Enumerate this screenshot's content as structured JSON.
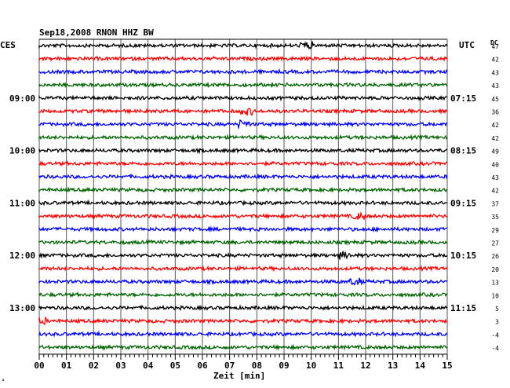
{
  "header": {
    "title": "Sep18,2008   RNON HHZ BW"
  },
  "left_label": "CES",
  "right_label": "UTC",
  "dc_label": "DC",
  "footer_mark": "°",
  "chart_data": {
    "type": "line",
    "title": "Sep18,2008   RNON HHZ BW",
    "xlabel": "Zeit [min]",
    "x_ticks": [
      "00",
      "01",
      "02",
      "03",
      "04",
      "05",
      "06",
      "07",
      "08",
      "09",
      "10",
      "11",
      "12",
      "13",
      "14",
      "15"
    ],
    "xlim": [
      0,
      15
    ],
    "y_left_ticks": [
      "09:00",
      "10:00",
      "11:00",
      "12:00",
      "13:00"
    ],
    "y_right_ticks": [
      "07:15",
      "08:15",
      "09:15",
      "10:15",
      "11:15"
    ],
    "trace_colors": [
      "#000000",
      "#ff0000",
      "#0000ff",
      "#006400"
    ],
    "dc_offsets": [
      47,
      42,
      43,
      43,
      45,
      36,
      42,
      42,
      49,
      40,
      43,
      42,
      37,
      35,
      29,
      27,
      26,
      20,
      13,
      10,
      5,
      3,
      -4,
      -4
    ],
    "grid": true,
    "legend": "none"
  }
}
